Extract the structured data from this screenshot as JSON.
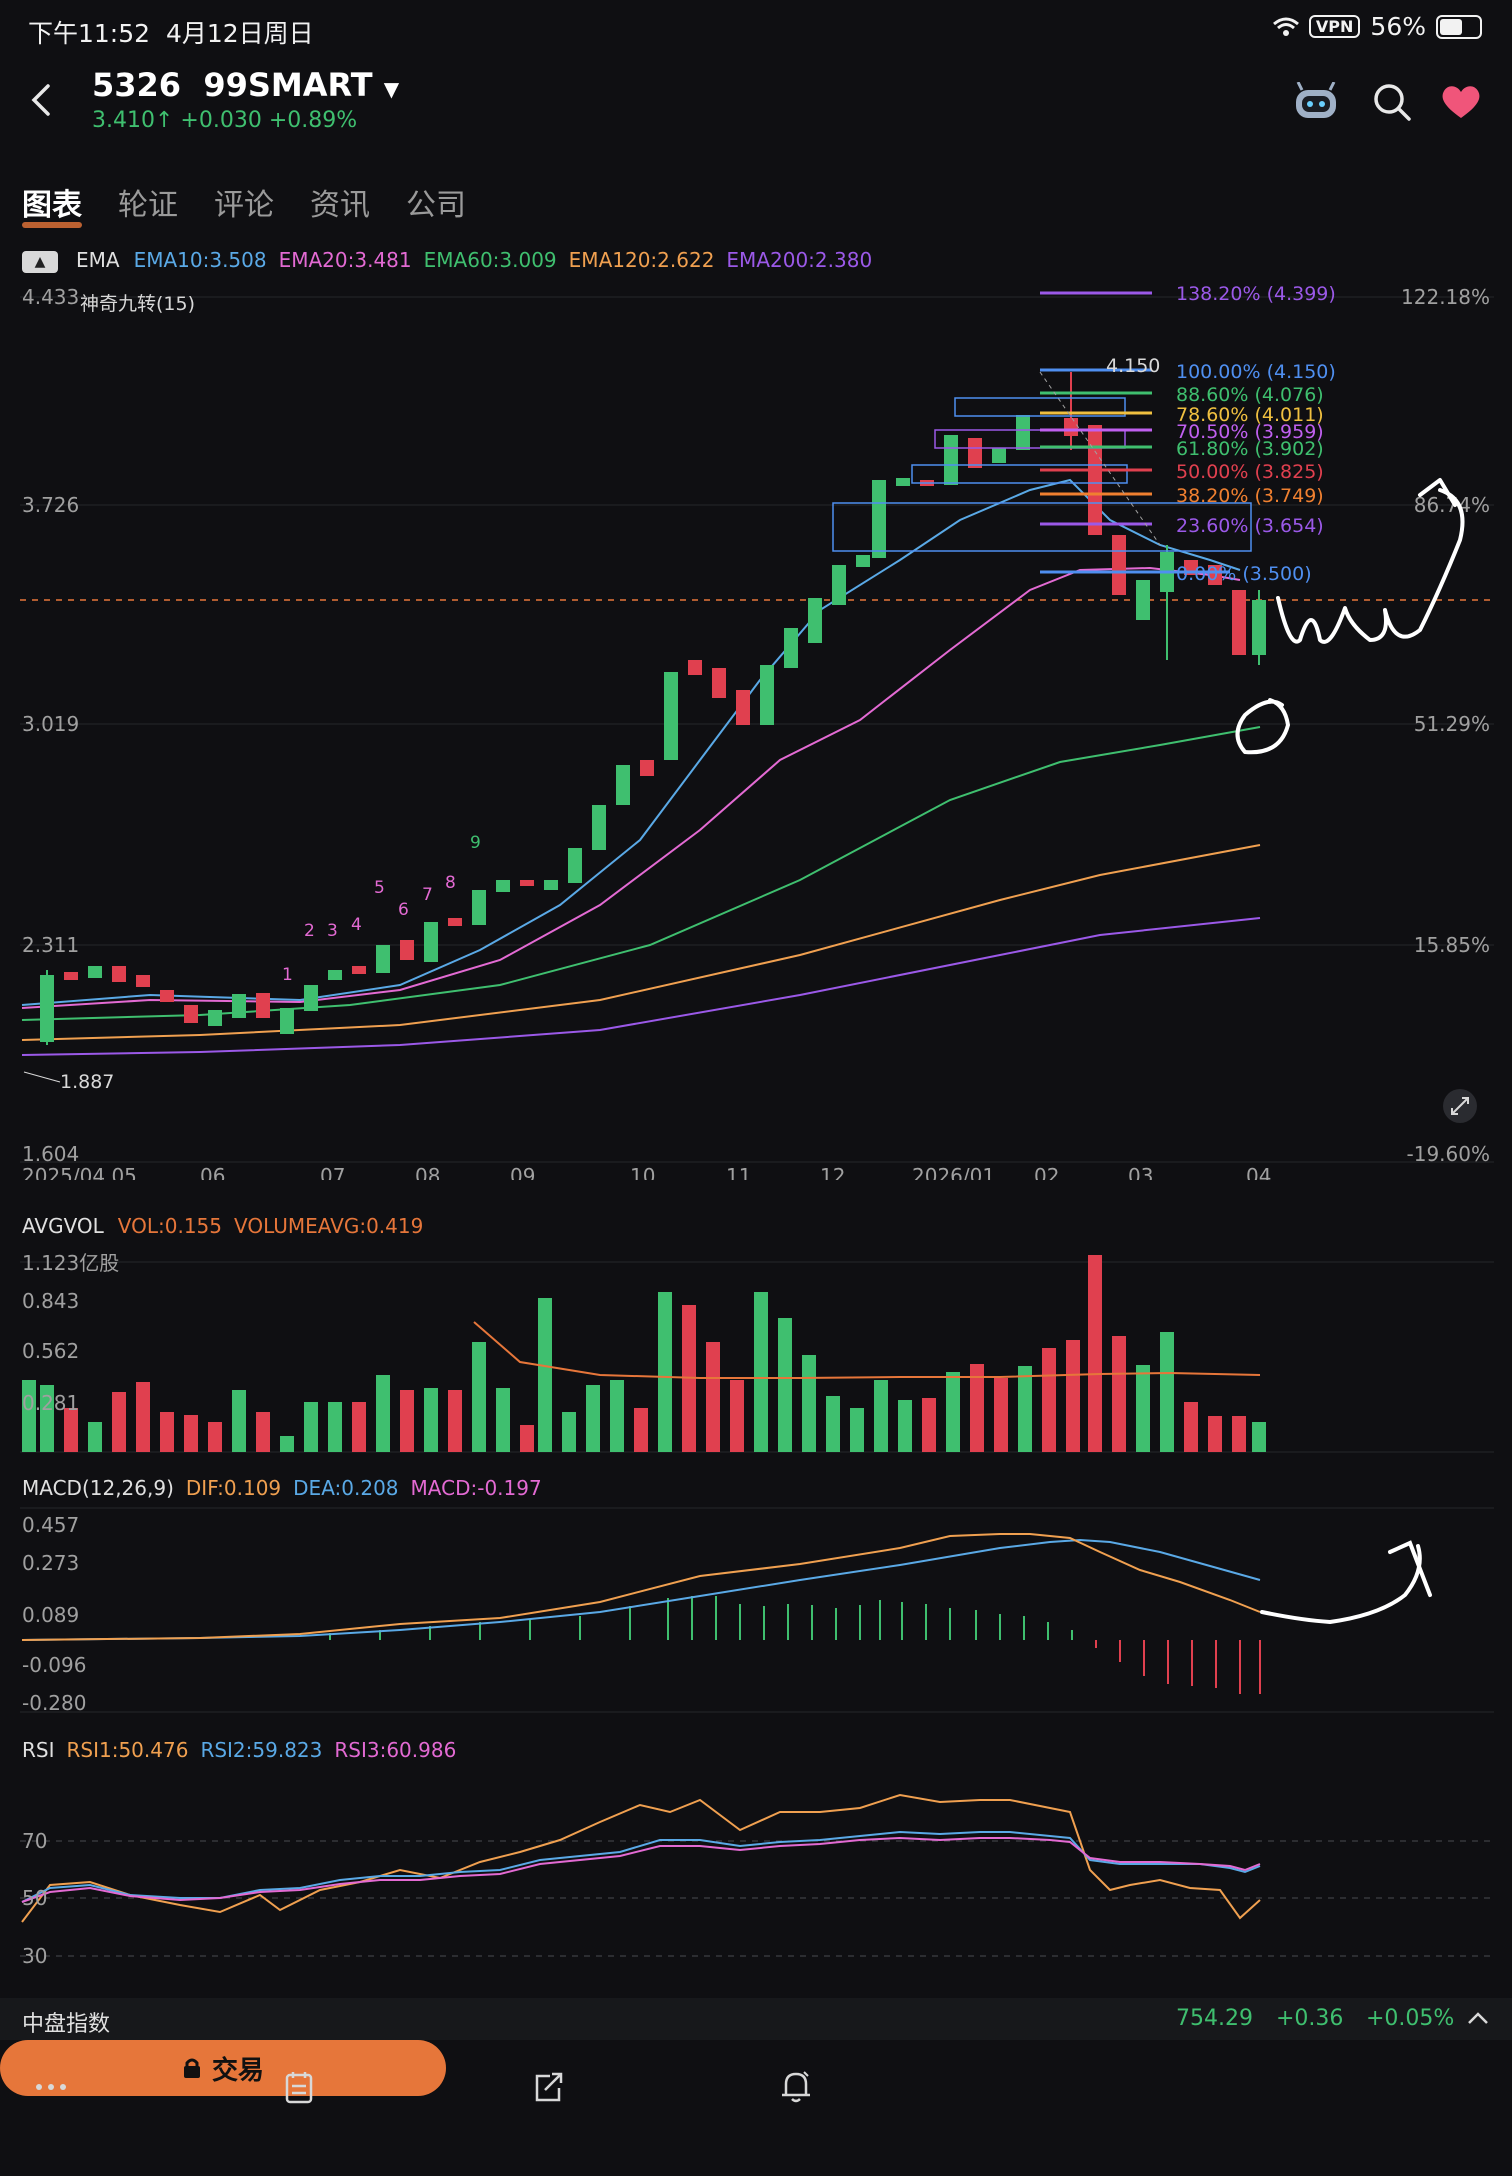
{
  "status_bar": {
    "time": "下午11:52",
    "date": "4月12日周日",
    "vpn": "VPN",
    "battery": "56%"
  },
  "header": {
    "symbol": "5326",
    "name": "99SMART",
    "price": "3.410",
    "change": "+0.030",
    "change_pct": "+0.89%"
  },
  "tabs": [
    "图表",
    "轮证",
    "评论",
    "资讯",
    "公司"
  ],
  "ema_legend": {
    "label": "EMA",
    "items": [
      {
        "text": "EMA10:3.508",
        "color": "#5aa9e6"
      },
      {
        "text": "EMA20:3.481",
        "color": "#e36ad3"
      },
      {
        "text": "EMA60:3.009",
        "color": "#3fbf6f"
      },
      {
        "text": "EMA120:2.622",
        "color": "#f0a050"
      },
      {
        "text": "EMA200:2.380",
        "color": "#9b59e8"
      }
    ]
  },
  "main_chart": {
    "indicator_label": "神奇九转(15)",
    "y_labels": [
      "4.433",
      "3.726",
      "3.019",
      "2.311",
      "1.604"
    ],
    "pct_labels": [
      "122.18%",
      "86.74%",
      "51.29%",
      "15.85%",
      "-19.60%"
    ],
    "x_labels": [
      "2025/04 05",
      "06",
      "07",
      "08",
      "09",
      "10",
      "11",
      "12",
      "2026/01",
      "02",
      "03",
      "04"
    ],
    "high_label": "4.150",
    "low_label": "1.887",
    "fib_levels": [
      {
        "text": "138.20% (4.399)",
        "color": "#9b59e8"
      },
      {
        "text": "100.00% (4.150)",
        "color": "#4f8ff0"
      },
      {
        "text": "88.60% (4.076)",
        "color": "#3fbf6f"
      },
      {
        "text": "78.60% (4.011)",
        "color": "#f0c040"
      },
      {
        "text": "70.50% (3.959)",
        "color": "#c060f0"
      },
      {
        "text": "61.80% (3.902)",
        "color": "#3fbf6f"
      },
      {
        "text": "50.00% (3.825)",
        "color": "#e0404f"
      },
      {
        "text": "38.20% (3.749)",
        "color": "#f08030"
      },
      {
        "text": "23.60% (3.654)",
        "color": "#9b59e8"
      },
      {
        "text": "0.00% (3.500)",
        "color": "#4f8ff0"
      }
    ],
    "nine_turn_labels": [
      "1",
      "2",
      "3",
      "4",
      "5",
      "6",
      "7",
      "8",
      "9"
    ]
  },
  "avgvol": {
    "label": "AVGVOL",
    "vol": "VOL:0.155",
    "volavg": "VOLUMEAVG:0.419",
    "y_labels": [
      "1.123亿股",
      "0.843",
      "0.562",
      "0.281"
    ]
  },
  "macd": {
    "label": "MACD(12,26,9)",
    "dif": "DIF:0.109",
    "dea": "DEA:0.208",
    "macd": "MACD:-0.197",
    "y_labels": [
      "0.457",
      "0.273",
      "0.089",
      "-0.096",
      "-0.280"
    ]
  },
  "rsi": {
    "label": "RSI",
    "rsi1": "RSI1:50.476",
    "rsi2": "RSI2:59.823",
    "rsi3": "RSI3:60.986",
    "y_labels": [
      "70",
      "50",
      "30"
    ]
  },
  "index_bar": {
    "name": "中盘指数",
    "value": "754.29",
    "change": "+0.36",
    "change_pct": "+0.05%"
  },
  "bottom_nav": {
    "trade_label": "交易"
  },
  "colors": {
    "up": "#3fbf6f",
    "down": "#e0404f",
    "accent": "#e6763a"
  }
}
